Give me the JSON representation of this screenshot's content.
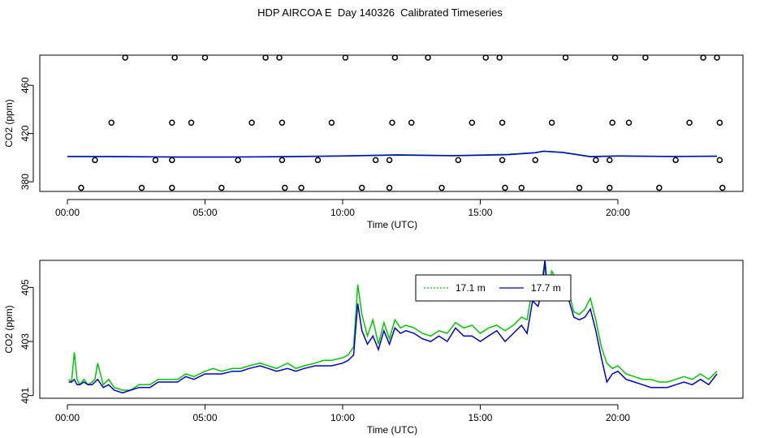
{
  "title": "HDP AIRCOA E  Day 140326  Calibrated Timeseries",
  "colors": {
    "green": "#00c800",
    "blue": "#0000cc",
    "axis": "#000000"
  },
  "chart_data": [
    {
      "type": "scatter",
      "xlabel": "Time (UTC)",
      "ylabel": "CO2 (ppm)",
      "x_ticks": [
        "00:00",
        "05:00",
        "10:00",
        "15:00",
        "20:00"
      ],
      "y_ticks": [
        "380",
        "420",
        "460"
      ],
      "xlim": [
        0,
        24
      ],
      "ylim": [
        372,
        485
      ],
      "grid": false,
      "points_x": [
        0.5,
        1.0,
        1.6,
        2.1,
        2.7,
        3.2,
        3.8,
        3.8,
        3.8,
        3.9,
        4.5,
        5.0,
        5.6,
        6.2,
        6.7,
        7.2,
        7.7,
        7.8,
        7.8,
        7.9,
        8.5,
        9.1,
        9.6,
        10.1,
        10.7,
        11.2,
        11.7,
        11.7,
        11.8,
        11.9,
        12.5,
        13.1,
        13.6,
        14.2,
        14.7,
        15.2,
        15.7,
        15.8,
        15.8,
        15.9,
        16.5,
        17.0,
        17.6,
        18.1,
        18.6,
        19.2,
        19.7,
        19.7,
        19.8,
        19.9,
        20.4,
        21.0,
        21.5,
        22.1,
        22.6,
        23.1,
        23.6,
        23.7,
        23.7,
        23.8
      ],
      "points_y": [
        375,
        398,
        429,
        483,
        375,
        398,
        375,
        398,
        429,
        483,
        429,
        483,
        375,
        398,
        429,
        483,
        483,
        429,
        398,
        375,
        375,
        398,
        429,
        483,
        375,
        398,
        375,
        398,
        429,
        483,
        429,
        483,
        375,
        398,
        429,
        483,
        483,
        429,
        398,
        375,
        375,
        398,
        429,
        483,
        375,
        398,
        375,
        398,
        429,
        483,
        429,
        483,
        375,
        398,
        429,
        483,
        483,
        429,
        398,
        375
      ],
      "series": [
        {
          "name": "17.1 m",
          "color": "#00c800",
          "x": [
            0,
            2,
            4,
            6,
            8,
            10,
            12,
            14,
            16,
            17,
            17.3,
            18,
            19,
            20,
            22,
            23.6
          ],
          "values": [
            401,
            401,
            400.6,
            400.6,
            401,
            401.5,
            402.5,
            401.8,
            402.8,
            404.2,
            405.5,
            404.5,
            401,
            401.5,
            401,
            401.3
          ]
        },
        {
          "name": "17.7 m",
          "color": "#0000cc",
          "x": [
            0,
            2,
            4,
            6,
            8,
            10,
            12,
            14,
            16,
            17,
            17.3,
            18,
            19,
            20,
            22,
            23.6
          ],
          "values": [
            400.9,
            400.8,
            400.5,
            400.5,
            400.8,
            401.3,
            402.2,
            401.6,
            402.5,
            404,
            405.3,
            404.3,
            400.8,
            401.3,
            400.9,
            401.2
          ]
        }
      ]
    },
    {
      "type": "line",
      "xlabel": "Time (UTC)",
      "ylabel": "CO2 (ppm)",
      "x_ticks": [
        "00:00",
        "05:00",
        "10:00",
        "15:00",
        "20:00"
      ],
      "y_ticks": [
        "401",
        "403",
        "405"
      ],
      "xlim": [
        0,
        24
      ],
      "ylim": [
        400.9,
        406
      ],
      "grid": false,
      "legend": {
        "position": "top-center-right",
        "entries": [
          "17.1 m",
          "17.7 m"
        ]
      },
      "series": [
        {
          "name": "17.1 m",
          "color": "#00c800",
          "x": [
            0.05,
            0.15,
            0.25,
            0.35,
            0.45,
            0.6,
            0.75,
            0.9,
            1.0,
            1.1,
            1.3,
            1.5,
            1.7,
            2.0,
            2.3,
            2.6,
            3.0,
            3.3,
            3.6,
            4.0,
            4.3,
            4.6,
            5.0,
            5.3,
            5.6,
            6.0,
            6.3,
            6.6,
            7.0,
            7.3,
            7.6,
            8.0,
            8.3,
            8.6,
            9.0,
            9.3,
            9.6,
            10.0,
            10.2,
            10.4,
            10.55,
            10.7,
            10.9,
            11.1,
            11.3,
            11.5,
            11.7,
            11.9,
            12.1,
            12.3,
            12.6,
            12.9,
            13.2,
            13.5,
            13.8,
            14.1,
            14.4,
            14.7,
            15.0,
            15.3,
            15.6,
            15.9,
            16.2,
            16.5,
            16.7,
            16.9,
            17.1,
            17.25,
            17.35,
            17.45,
            17.6,
            17.8,
            18.0,
            18.2,
            18.4,
            18.6,
            18.8,
            19.0,
            19.2,
            19.4,
            19.6,
            19.8,
            20.0,
            20.3,
            20.6,
            20.9,
            21.2,
            21.5,
            21.8,
            22.1,
            22.4,
            22.7,
            23.0,
            23.3,
            23.6
          ],
          "values": [
            401.6,
            401.5,
            402.6,
            401.6,
            401.4,
            401.6,
            401.4,
            401.5,
            401.6,
            402.2,
            401.4,
            401.6,
            401.3,
            401.2,
            401.2,
            401.4,
            401.4,
            401.6,
            401.6,
            401.6,
            401.8,
            401.7,
            401.9,
            402.0,
            401.9,
            402.0,
            402.0,
            402.1,
            402.2,
            402.1,
            402.0,
            402.2,
            402.0,
            402.1,
            402.2,
            402.3,
            402.3,
            402.4,
            402.5,
            402.8,
            405.1,
            404.0,
            403.2,
            403.8,
            402.9,
            403.7,
            403.1,
            403.8,
            403.5,
            403.6,
            403.5,
            403.3,
            403.2,
            403.4,
            403.3,
            403.7,
            403.5,
            403.6,
            403.3,
            403.5,
            403.6,
            403.4,
            403.6,
            403.9,
            403.8,
            405.0,
            404.8,
            405.3,
            406.0,
            405.0,
            405.6,
            405.2,
            405.3,
            404.9,
            404.1,
            404.0,
            404.2,
            404.6,
            403.8,
            402.8,
            402.2,
            402.0,
            402.1,
            401.8,
            401.7,
            401.6,
            401.6,
            401.5,
            401.5,
            401.6,
            401.7,
            401.6,
            401.8,
            401.6,
            401.9
          ]
        },
        {
          "name": "17.7 m",
          "color": "#0000cc",
          "x": [
            0.05,
            0.15,
            0.25,
            0.35,
            0.45,
            0.6,
            0.75,
            0.9,
            1.0,
            1.1,
            1.3,
            1.5,
            1.7,
            2.0,
            2.3,
            2.6,
            3.0,
            3.3,
            3.6,
            4.0,
            4.3,
            4.6,
            5.0,
            5.3,
            5.6,
            6.0,
            6.3,
            6.6,
            7.0,
            7.3,
            7.6,
            8.0,
            8.3,
            8.6,
            9.0,
            9.3,
            9.6,
            10.0,
            10.2,
            10.4,
            10.55,
            10.7,
            10.9,
            11.1,
            11.3,
            11.5,
            11.7,
            11.9,
            12.1,
            12.3,
            12.6,
            12.9,
            13.2,
            13.5,
            13.8,
            14.1,
            14.4,
            14.7,
            15.0,
            15.3,
            15.6,
            15.9,
            16.2,
            16.5,
            16.7,
            16.9,
            17.1,
            17.25,
            17.35,
            17.45,
            17.6,
            17.8,
            18.0,
            18.2,
            18.4,
            18.6,
            18.8,
            19.0,
            19.2,
            19.4,
            19.6,
            19.8,
            20.0,
            20.3,
            20.6,
            20.9,
            21.2,
            21.5,
            21.8,
            22.1,
            22.4,
            22.7,
            23.0,
            23.3,
            23.6
          ],
          "values": [
            401.5,
            401.5,
            401.6,
            401.4,
            401.4,
            401.5,
            401.4,
            401.4,
            401.5,
            401.6,
            401.3,
            401.4,
            401.2,
            401.1,
            401.2,
            401.3,
            401.3,
            401.5,
            401.5,
            401.5,
            401.7,
            401.6,
            401.8,
            401.8,
            401.8,
            401.9,
            401.9,
            402.0,
            402.1,
            402.0,
            401.9,
            402.0,
            401.9,
            402.0,
            402.1,
            402.1,
            402.1,
            402.2,
            402.3,
            402.5,
            404.4,
            403.4,
            402.9,
            403.2,
            402.7,
            403.4,
            402.9,
            403.5,
            403.3,
            403.4,
            403.3,
            403.1,
            403.0,
            403.2,
            403.0,
            403.5,
            403.2,
            403.2,
            403.0,
            403.2,
            403.4,
            403.0,
            403.3,
            403.6,
            403.3,
            404.5,
            404.3,
            404.9,
            406.0,
            404.6,
            405.2,
            404.8,
            404.9,
            404.6,
            403.9,
            403.8,
            403.9,
            404.2,
            403.4,
            402.4,
            401.5,
            401.8,
            401.9,
            401.6,
            401.5,
            401.4,
            401.3,
            401.3,
            401.3,
            401.4,
            401.5,
            401.4,
            401.6,
            401.4,
            401.8
          ]
        }
      ]
    }
  ]
}
